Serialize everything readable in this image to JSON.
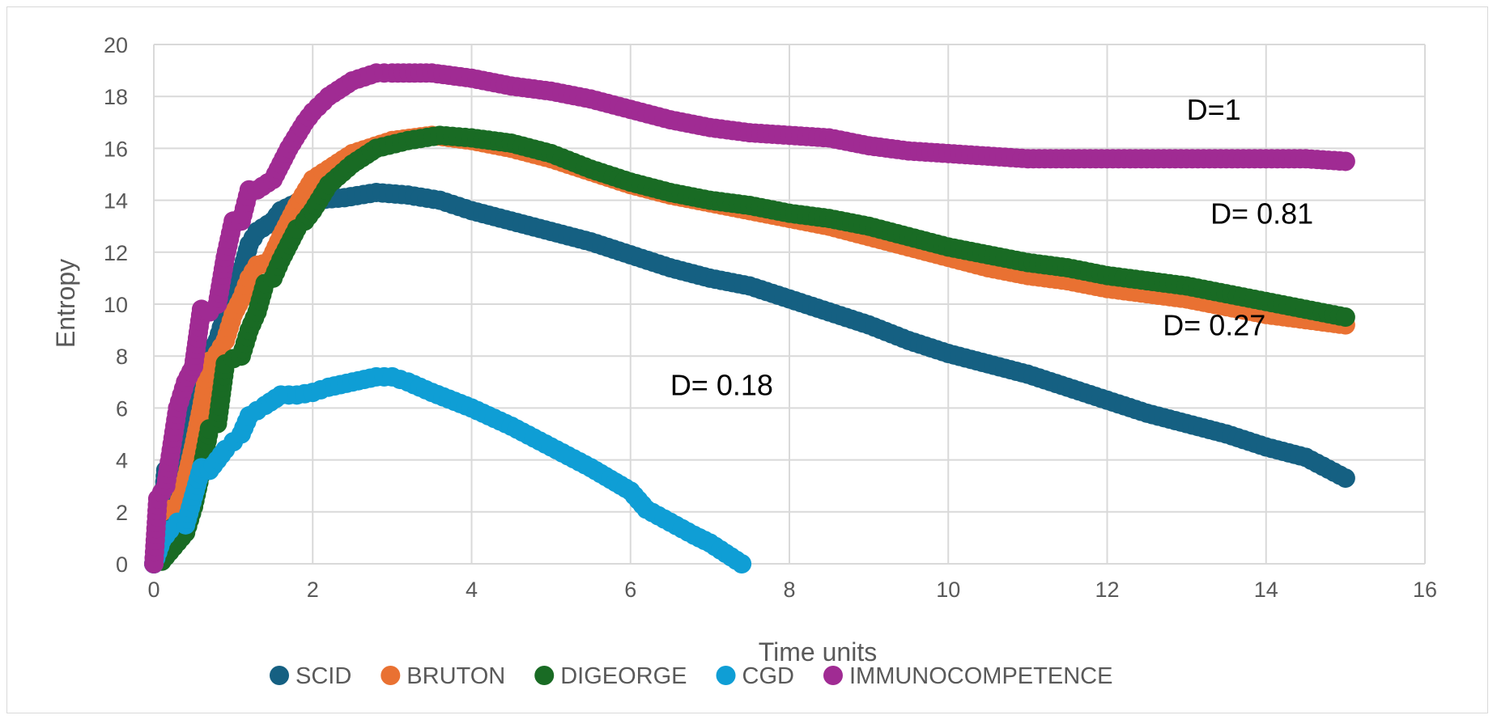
{
  "chart_data": {
    "type": "scatter",
    "xlabel": "Time units",
    "ylabel": "Entropy",
    "xlim": [
      0,
      16
    ],
    "ylim": [
      0,
      20
    ],
    "x_ticks": [
      "0",
      "2",
      "4",
      "6",
      "8",
      "10",
      "12",
      "14",
      "16"
    ],
    "y_ticks": [
      "0",
      "2",
      "4",
      "6",
      "8",
      "10",
      "12",
      "14",
      "16",
      "18",
      "20"
    ],
    "grid": true,
    "legend_position": "bottom",
    "series": [
      {
        "name": "SCID",
        "color": "#156082",
        "points": [
          [
            0,
            0
          ],
          [
            0.1,
            1.6
          ],
          [
            0.15,
            3.6
          ],
          [
            0.3,
            3.7
          ],
          [
            0.4,
            5.9
          ],
          [
            0.55,
            7.2
          ],
          [
            0.8,
            8.6
          ],
          [
            0.9,
            9.6
          ],
          [
            1.0,
            10.8
          ],
          [
            1.1,
            11.2
          ],
          [
            1.2,
            12.3
          ],
          [
            1.3,
            12.8
          ],
          [
            1.5,
            13.2
          ],
          [
            1.6,
            13.6
          ],
          [
            1.8,
            13.9
          ],
          [
            2.0,
            14.0
          ],
          [
            2.4,
            14.1
          ],
          [
            2.8,
            14.3
          ],
          [
            3.2,
            14.2
          ],
          [
            3.6,
            14.0
          ],
          [
            4.0,
            13.6
          ],
          [
            4.5,
            13.2
          ],
          [
            5.0,
            12.8
          ],
          [
            5.5,
            12.4
          ],
          [
            6.0,
            11.9
          ],
          [
            6.5,
            11.4
          ],
          [
            7.0,
            11.0
          ],
          [
            7.5,
            10.7
          ],
          [
            8.0,
            10.2
          ],
          [
            8.5,
            9.7
          ],
          [
            9.0,
            9.2
          ],
          [
            9.5,
            8.6
          ],
          [
            10.0,
            8.1
          ],
          [
            10.5,
            7.7
          ],
          [
            11.0,
            7.3
          ],
          [
            11.5,
            6.8
          ],
          [
            12.0,
            6.3
          ],
          [
            12.5,
            5.8
          ],
          [
            13.0,
            5.4
          ],
          [
            13.5,
            5.0
          ],
          [
            14.0,
            4.5
          ],
          [
            14.5,
            4.1
          ],
          [
            15.0,
            3.3
          ]
        ]
      },
      {
        "name": "BRUTON",
        "color": "#E97132",
        "points": [
          [
            0.1,
            2.0
          ],
          [
            0.3,
            2.2
          ],
          [
            0.4,
            3.2
          ],
          [
            0.5,
            4.5
          ],
          [
            0.6,
            6.0
          ],
          [
            0.7,
            7.8
          ],
          [
            0.8,
            8.1
          ],
          [
            0.9,
            8.6
          ],
          [
            1.0,
            9.6
          ],
          [
            1.1,
            10.2
          ],
          [
            1.2,
            11.0
          ],
          [
            1.3,
            11.5
          ],
          [
            1.45,
            11.6
          ],
          [
            1.6,
            12.6
          ],
          [
            1.7,
            13.2
          ],
          [
            1.8,
            13.8
          ],
          [
            2.0,
            14.8
          ],
          [
            2.2,
            15.2
          ],
          [
            2.5,
            15.8
          ],
          [
            3.0,
            16.3
          ],
          [
            3.5,
            16.5
          ],
          [
            4.0,
            16.3
          ],
          [
            4.5,
            16.0
          ],
          [
            5.0,
            15.6
          ],
          [
            5.5,
            15.1
          ],
          [
            6.0,
            14.6
          ],
          [
            6.5,
            14.2
          ],
          [
            7.0,
            13.9
          ],
          [
            7.5,
            13.6
          ],
          [
            8.0,
            13.3
          ],
          [
            8.5,
            13.0
          ],
          [
            9.0,
            12.6
          ],
          [
            9.5,
            12.2
          ],
          [
            10.0,
            11.8
          ],
          [
            10.5,
            11.4
          ],
          [
            11.0,
            11.1
          ],
          [
            11.5,
            10.9
          ],
          [
            12.0,
            10.6
          ],
          [
            12.5,
            10.4
          ],
          [
            13.0,
            10.2
          ],
          [
            13.5,
            9.9
          ],
          [
            14.0,
            9.6
          ],
          [
            14.5,
            9.4
          ],
          [
            15.0,
            9.2
          ]
        ]
      },
      {
        "name": "DIGEORGE",
        "color": "#196B24",
        "points": [
          [
            0.1,
            0.1
          ],
          [
            0.4,
            1.2
          ],
          [
            0.5,
            2.2
          ],
          [
            0.6,
            3.6
          ],
          [
            0.7,
            5.2
          ],
          [
            0.8,
            5.4
          ],
          [
            0.9,
            7.7
          ],
          [
            1.0,
            7.9
          ],
          [
            1.1,
            8.0
          ],
          [
            1.2,
            9.0
          ],
          [
            1.3,
            9.7
          ],
          [
            1.4,
            10.8
          ],
          [
            1.5,
            11.0
          ],
          [
            1.6,
            11.7
          ],
          [
            1.8,
            12.9
          ],
          [
            1.9,
            13.2
          ],
          [
            2.0,
            13.6
          ],
          [
            2.2,
            14.6
          ],
          [
            2.5,
            15.4
          ],
          [
            2.8,
            16.0
          ],
          [
            3.2,
            16.3
          ],
          [
            3.6,
            16.5
          ],
          [
            4.0,
            16.4
          ],
          [
            4.5,
            16.2
          ],
          [
            5.0,
            15.8
          ],
          [
            5.5,
            15.2
          ],
          [
            6.0,
            14.7
          ],
          [
            6.5,
            14.3
          ],
          [
            7.0,
            14.0
          ],
          [
            7.5,
            13.8
          ],
          [
            8.0,
            13.5
          ],
          [
            8.5,
            13.3
          ],
          [
            9.0,
            13.0
          ],
          [
            9.5,
            12.6
          ],
          [
            10.0,
            12.2
          ],
          [
            10.5,
            11.9
          ],
          [
            11.0,
            11.6
          ],
          [
            11.5,
            11.4
          ],
          [
            12.0,
            11.1
          ],
          [
            12.5,
            10.9
          ],
          [
            13.0,
            10.7
          ],
          [
            13.5,
            10.4
          ],
          [
            14.0,
            10.1
          ],
          [
            14.5,
            9.8
          ],
          [
            15.0,
            9.5
          ]
        ]
      },
      {
        "name": "CGD",
        "color": "#0F9ED5",
        "points": [
          [
            0,
            0
          ],
          [
            0.1,
            0.9
          ],
          [
            0.2,
            1.3
          ],
          [
            0.3,
            1.6
          ],
          [
            0.4,
            1.5
          ],
          [
            0.5,
            2.6
          ],
          [
            0.6,
            3.7
          ],
          [
            0.7,
            3.6
          ],
          [
            0.8,
            4.0
          ],
          [
            0.9,
            4.4
          ],
          [
            1.0,
            4.7
          ],
          [
            1.1,
            5.0
          ],
          [
            1.2,
            5.7
          ],
          [
            1.3,
            5.9
          ],
          [
            1.4,
            6.1
          ],
          [
            1.6,
            6.5
          ],
          [
            1.8,
            6.5
          ],
          [
            2.0,
            6.6
          ],
          [
            2.2,
            6.8
          ],
          [
            2.5,
            7.0
          ],
          [
            2.8,
            7.2
          ],
          [
            3.0,
            7.2
          ],
          [
            3.2,
            7.0
          ],
          [
            3.5,
            6.6
          ],
          [
            4.0,
            6.0
          ],
          [
            4.5,
            5.3
          ],
          [
            5.0,
            4.5
          ],
          [
            5.5,
            3.7
          ],
          [
            6.0,
            2.8
          ],
          [
            6.2,
            2.1
          ],
          [
            6.5,
            1.6
          ],
          [
            6.8,
            1.1
          ],
          [
            7.0,
            0.8
          ],
          [
            7.2,
            0.4
          ],
          [
            7.4,
            0.0
          ]
        ]
      },
      {
        "name": "IMMUNOCOMPETENCE",
        "color": "#A02B93",
        "points": [
          [
            0,
            0
          ],
          [
            0.05,
            2.5
          ],
          [
            0.15,
            3.0
          ],
          [
            0.3,
            6.0
          ],
          [
            0.4,
            7.0
          ],
          [
            0.5,
            7.6
          ],
          [
            0.6,
            9.8
          ],
          [
            0.7,
            9.7
          ],
          [
            0.8,
            10.0
          ],
          [
            0.9,
            11.8
          ],
          [
            1.0,
            13.2
          ],
          [
            1.1,
            13.2
          ],
          [
            1.2,
            14.4
          ],
          [
            1.3,
            14.4
          ],
          [
            1.5,
            14.8
          ],
          [
            1.6,
            15.4
          ],
          [
            1.7,
            16.0
          ],
          [
            1.9,
            17.0
          ],
          [
            2.0,
            17.4
          ],
          [
            2.2,
            18.0
          ],
          [
            2.5,
            18.6
          ],
          [
            2.8,
            18.9
          ],
          [
            3.0,
            18.9
          ],
          [
            3.5,
            18.9
          ],
          [
            4.0,
            18.7
          ],
          [
            4.5,
            18.4
          ],
          [
            5.0,
            18.2
          ],
          [
            5.5,
            17.9
          ],
          [
            6.0,
            17.5
          ],
          [
            6.5,
            17.1
          ],
          [
            7.0,
            16.8
          ],
          [
            7.5,
            16.6
          ],
          [
            8.0,
            16.5
          ],
          [
            8.5,
            16.4
          ],
          [
            9.0,
            16.1
          ],
          [
            9.5,
            15.9
          ],
          [
            10.0,
            15.8
          ],
          [
            10.5,
            15.7
          ],
          [
            11.0,
            15.6
          ],
          [
            11.5,
            15.6
          ],
          [
            12.0,
            15.6
          ],
          [
            12.5,
            15.6
          ],
          [
            13.0,
            15.6
          ],
          [
            13.5,
            15.6
          ],
          [
            14.0,
            15.6
          ],
          [
            14.5,
            15.6
          ],
          [
            15.0,
            15.5
          ]
        ]
      }
    ],
    "annotations": [
      {
        "text": "D=1",
        "x": 13.0,
        "y": 17.1
      },
      {
        "text": "D= 0.81",
        "x": 13.3,
        "y": 13.1
      },
      {
        "text": "D= 0.27",
        "x": 12.7,
        "y": 8.8
      },
      {
        "text": "D= 0.18",
        "x": 6.5,
        "y": 6.5
      }
    ]
  }
}
